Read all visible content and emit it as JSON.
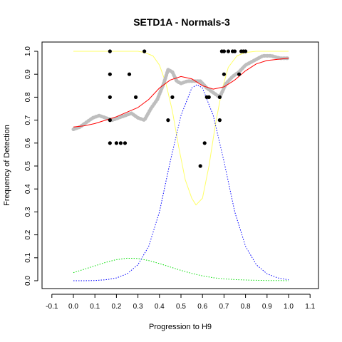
{
  "chart_data": {
    "type": "scatter",
    "title": "SETD1A - Normals-3",
    "xlabel": "Progression to H9",
    "ylabel": "Frequency of Detection",
    "xlim": [
      -0.1,
      1.1
    ],
    "ylim": [
      0.0,
      1.0
    ],
    "xticks": [
      "-0.1",
      "0.0",
      "0.1",
      "0.2",
      "0.3",
      "0.4",
      "0.5",
      "0.6",
      "0.7",
      "0.8",
      "0.9",
      "1.0",
      "1.1"
    ],
    "yticks": [
      "0.0",
      "0.1",
      "0.2",
      "0.3",
      "0.4",
      "0.5",
      "0.6",
      "0.7",
      "0.8",
      "0.9",
      "1.0"
    ],
    "grid": false,
    "legend": "none",
    "colors": {
      "points": "#000000",
      "smoothed": "#bebebe",
      "fit": "#ff0000",
      "envelope": "#ffff66",
      "density_early": "#00dd00",
      "density_late": "#0000ff"
    },
    "series": [
      {
        "role": "observations",
        "style": "black dots",
        "x": [
          0.17,
          0.17,
          0.17,
          0.17,
          0.17,
          0.2,
          0.22,
          0.24,
          0.26,
          0.29,
          0.33,
          0.44,
          0.46,
          0.59,
          0.61,
          0.62,
          0.63,
          0.68,
          0.68,
          0.69,
          0.7,
          0.7,
          0.72,
          0.74,
          0.75,
          0.77,
          0.78,
          0.79,
          0.8
        ],
        "y": [
          1.0,
          0.9,
          0.8,
          0.7,
          0.6,
          0.6,
          0.6,
          0.6,
          0.9,
          0.8,
          1.0,
          0.7,
          0.8,
          0.5,
          0.6,
          0.8,
          0.8,
          0.8,
          0.7,
          1.0,
          1.0,
          0.9,
          1.0,
          1.0,
          1.0,
          0.9,
          1.0,
          1.0,
          1.0
        ]
      },
      {
        "role": "running-average",
        "style": "thick gray dotted band",
        "x": [
          0.0,
          0.03,
          0.06,
          0.09,
          0.12,
          0.15,
          0.18,
          0.21,
          0.24,
          0.27,
          0.3,
          0.33,
          0.36,
          0.39,
          0.42,
          0.44,
          0.46,
          0.48,
          0.5,
          0.53,
          0.56,
          0.59,
          0.62,
          0.65,
          0.68,
          0.71,
          0.74,
          0.77,
          0.8,
          0.84,
          0.88,
          0.92,
          0.96,
          1.0
        ],
        "y": [
          0.66,
          0.67,
          0.69,
          0.71,
          0.72,
          0.71,
          0.7,
          0.71,
          0.72,
          0.73,
          0.71,
          0.7,
          0.75,
          0.79,
          0.86,
          0.92,
          0.91,
          0.87,
          0.86,
          0.87,
          0.87,
          0.87,
          0.84,
          0.82,
          0.8,
          0.86,
          0.89,
          0.91,
          0.94,
          0.96,
          0.98,
          0.98,
          0.97,
          0.97
        ]
      },
      {
        "role": "fitted-curve",
        "style": "red line",
        "x": [
          0.0,
          0.05,
          0.1,
          0.15,
          0.2,
          0.25,
          0.3,
          0.35,
          0.4,
          0.45,
          0.5,
          0.55,
          0.6,
          0.65,
          0.7,
          0.75,
          0.8,
          0.85,
          0.9,
          0.95,
          1.0
        ],
        "y": [
          0.67,
          0.675,
          0.685,
          0.7,
          0.715,
          0.735,
          0.755,
          0.79,
          0.84,
          0.875,
          0.89,
          0.88,
          0.85,
          0.835,
          0.845,
          0.875,
          0.915,
          0.945,
          0.96,
          0.965,
          0.97
        ]
      },
      {
        "role": "envelope",
        "style": "yellow line",
        "x": [
          0.0,
          0.1,
          0.2,
          0.3,
          0.33,
          0.37,
          0.4,
          0.43,
          0.46,
          0.49,
          0.52,
          0.55,
          0.57,
          0.6,
          0.63,
          0.66,
          0.69,
          0.72,
          0.76,
          0.8,
          0.85,
          0.9,
          0.95,
          1.0
        ],
        "y": [
          1.0,
          1.0,
          1.0,
          1.0,
          0.995,
          0.98,
          0.94,
          0.86,
          0.74,
          0.58,
          0.44,
          0.36,
          0.33,
          0.36,
          0.5,
          0.68,
          0.83,
          0.93,
          0.98,
          0.995,
          1.0,
          1.0,
          1.0,
          1.0
        ]
      },
      {
        "role": "density-early",
        "style": "green dotted line",
        "x": [
          0.0,
          0.05,
          0.1,
          0.15,
          0.2,
          0.25,
          0.3,
          0.35,
          0.4,
          0.45,
          0.5,
          0.55,
          0.6,
          0.65,
          0.7,
          0.75,
          0.8,
          0.85,
          0.9,
          0.95,
          1.0
        ],
        "y": [
          0.035,
          0.05,
          0.065,
          0.08,
          0.092,
          0.098,
          0.097,
          0.088,
          0.075,
          0.06,
          0.045,
          0.032,
          0.021,
          0.013,
          0.008,
          0.005,
          0.003,
          0.002,
          0.001,
          0.001,
          0.0
        ]
      },
      {
        "role": "density-late",
        "style": "blue dotted line",
        "x": [
          0.0,
          0.05,
          0.1,
          0.15,
          0.2,
          0.25,
          0.3,
          0.35,
          0.4,
          0.45,
          0.5,
          0.55,
          0.575,
          0.6,
          0.65,
          0.7,
          0.75,
          0.8,
          0.85,
          0.9,
          0.95,
          1.0
        ],
        "y": [
          0.0,
          0.0,
          0.001,
          0.004,
          0.012,
          0.03,
          0.07,
          0.15,
          0.3,
          0.52,
          0.72,
          0.84,
          0.855,
          0.84,
          0.72,
          0.52,
          0.3,
          0.15,
          0.07,
          0.03,
          0.012,
          0.004
        ]
      }
    ]
  }
}
